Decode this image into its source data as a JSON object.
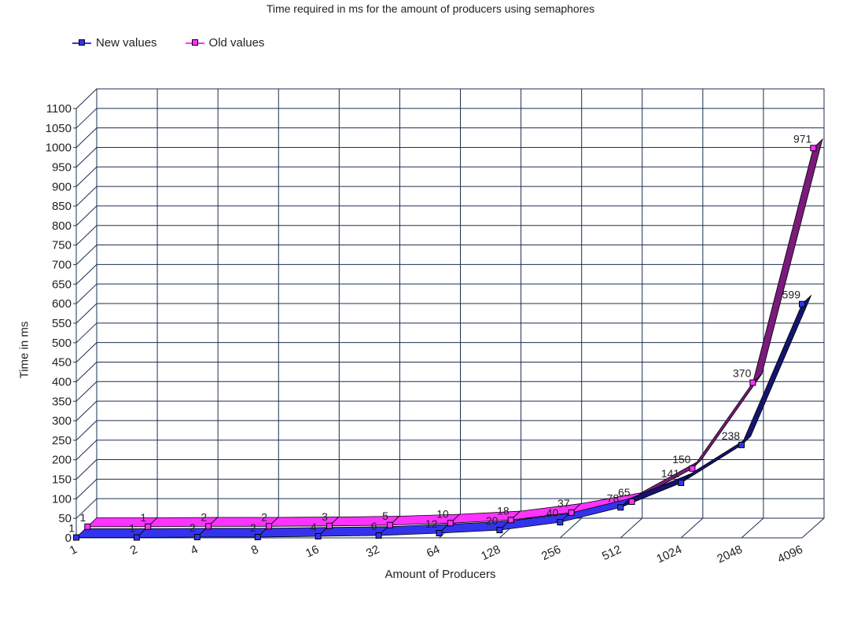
{
  "chart_data": {
    "type": "line",
    "title": "Time required in ms for the amount of producers using semaphores",
    "xlabel": "Amount of Producers",
    "ylabel": "Time in ms",
    "categories": [
      "1",
      "2",
      "4",
      "8",
      "16",
      "32",
      "64",
      "128",
      "256",
      "512",
      "1024",
      "2048",
      "4096"
    ],
    "ylim": [
      0,
      1100
    ],
    "yticks": [
      0,
      50,
      100,
      150,
      200,
      250,
      300,
      350,
      400,
      450,
      500,
      550,
      600,
      650,
      700,
      750,
      800,
      850,
      900,
      950,
      1000,
      1050,
      1100
    ],
    "grid": true,
    "legend_position": "top-left",
    "series": [
      {
        "name": "New values",
        "color": "#3333ee",
        "side_color": "#141470",
        "values": [
          1,
          1,
          2,
          2,
          4,
          6,
          12,
          20,
          40,
          78,
          141,
          238,
          599
        ]
      },
      {
        "name": "Old values",
        "color": "#ff33ff",
        "side_color": "#7a1a7a",
        "values": [
          1,
          1,
          2,
          2,
          3,
          5,
          10,
          18,
          37,
          65,
          150,
          370,
          971
        ]
      }
    ]
  }
}
